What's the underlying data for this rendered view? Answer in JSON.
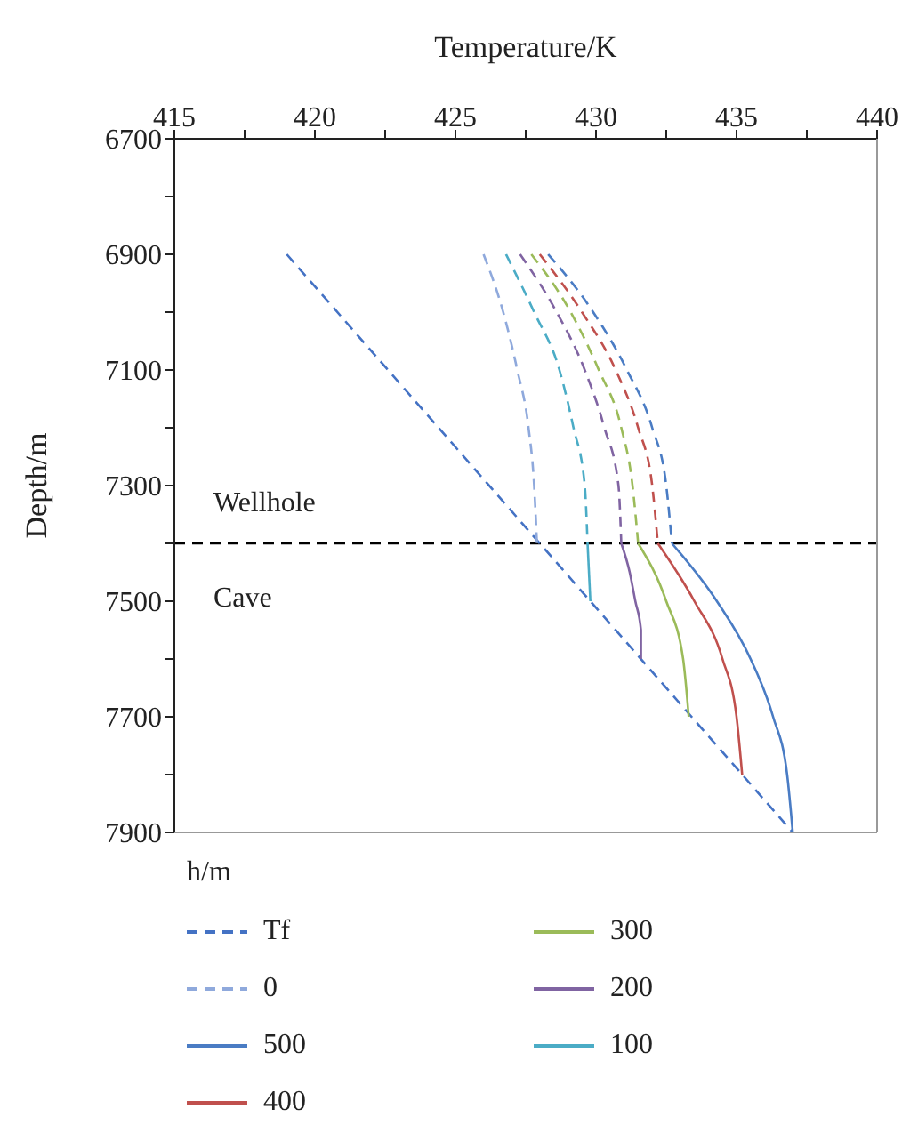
{
  "chart_data": {
    "type": "line",
    "xlabel": "Temperature/K",
    "ylabel": "Depth/m",
    "legend_title": "h/m",
    "legend": "bottom",
    "marker": "none",
    "xlim": [
      415,
      440
    ],
    "xticks": [
      415,
      {
        "value": 417.5,
        "label": null
      },
      420,
      {
        "value": 422.5,
        "label": null
      },
      425,
      {
        "value": 427.5,
        "label": null
      },
      430,
      {
        "value": 432.5,
        "label": null
      },
      435,
      {
        "value": 437.5,
        "label": null
      },
      440
    ],
    "ylim": [
      7900,
      6700
    ],
    "yticks": [
      6700,
      {
        "value": 6800,
        "label": null
      },
      6900,
      {
        "value": 7000,
        "label": null
      },
      7100,
      {
        "value": 7200,
        "label": null
      },
      7300,
      {
        "value": 7400,
        "label": null
      },
      7500,
      {
        "value": 7600,
        "label": null
      },
      7700,
      {
        "value": 7800,
        "label": null
      },
      7900
    ],
    "ref_lines": [
      {
        "axis": "y",
        "value": 7400,
        "label": null,
        "color": "#000000",
        "line_style": "dashed"
      }
    ],
    "annotations": [
      "Wellhole",
      "Cave"
    ],
    "series": [
      {
        "name": "Tf",
        "color": "#4472c4",
        "line_style": "dashed",
        "x": [
          419,
          437
        ],
        "values": [
          6900,
          7900
        ]
      },
      {
        "name": "0",
        "color": "#8fa9dc",
        "line_style": "dashed",
        "x": [
          426.0,
          426.7,
          427.2,
          427.6,
          427.8,
          427.9
        ],
        "values": [
          6900,
          7000,
          7100,
          7200,
          7300,
          7400
        ]
      },
      {
        "name": "500",
        "color": "#4a7cc4",
        "line_style": "solid",
        "x": [
          432.7,
          434.3,
          435.5,
          436.3,
          436.8,
          437.0
        ],
        "values": [
          7400,
          7500,
          7600,
          7700,
          7800,
          7900
        ]
      },
      {
        "name": "400",
        "color": "#c0504d",
        "line_style": "solid",
        "x": [
          432.2,
          433.5,
          434.5,
          435.0,
          435.2
        ],
        "values": [
          7400,
          7500,
          7600,
          7700,
          7800
        ]
      },
      {
        "name": "300",
        "color": "#9bbb59",
        "line_style": "solid",
        "x": [
          431.5,
          432.5,
          433.1,
          433.3
        ],
        "values": [
          7400,
          7500,
          7600,
          7700
        ]
      },
      {
        "name": "200",
        "color": "#8064a2",
        "line_style": "solid",
        "x": [
          430.9,
          431.2,
          431.4,
          431.6,
          431.6
        ],
        "values": [
          7400,
          7450,
          7500,
          7550,
          7600
        ]
      },
      {
        "name": "100",
        "color": "#4bacc6",
        "line_style": "solid",
        "x": [
          429.7,
          429.8
        ],
        "values": [
          7400,
          7500
        ]
      },
      {
        "color": "#4a7cc4",
        "line_style": "dashed",
        "x": [
          428.3,
          429.9,
          431.1,
          432.0,
          432.5,
          432.7
        ],
        "values": [
          6900,
          7000,
          7100,
          7200,
          7300,
          7400
        ]
      },
      {
        "color": "#c0504d",
        "line_style": "dashed",
        "x": [
          428.0,
          429.5,
          430.7,
          431.5,
          432.0,
          432.2
        ],
        "values": [
          6900,
          7000,
          7100,
          7200,
          7300,
          7400
        ]
      },
      {
        "color": "#9bbb59",
        "line_style": "dashed",
        "x": [
          427.7,
          429.1,
          430.1,
          430.9,
          431.3,
          431.5
        ],
        "values": [
          6900,
          7000,
          7100,
          7200,
          7300,
          7400
        ]
      },
      {
        "color": "#8064a2",
        "line_style": "dashed",
        "x": [
          427.3,
          428.6,
          429.6,
          430.3,
          430.8,
          430.9
        ],
        "values": [
          6900,
          7000,
          7100,
          7200,
          7300,
          7400
        ]
      },
      {
        "color": "#4bacc6",
        "line_style": "dashed",
        "x": [
          426.8,
          427.8,
          428.7,
          429.2,
          429.6,
          429.7
        ],
        "values": [
          6900,
          7000,
          7100,
          7200,
          7300,
          7400
        ]
      }
    ]
  }
}
